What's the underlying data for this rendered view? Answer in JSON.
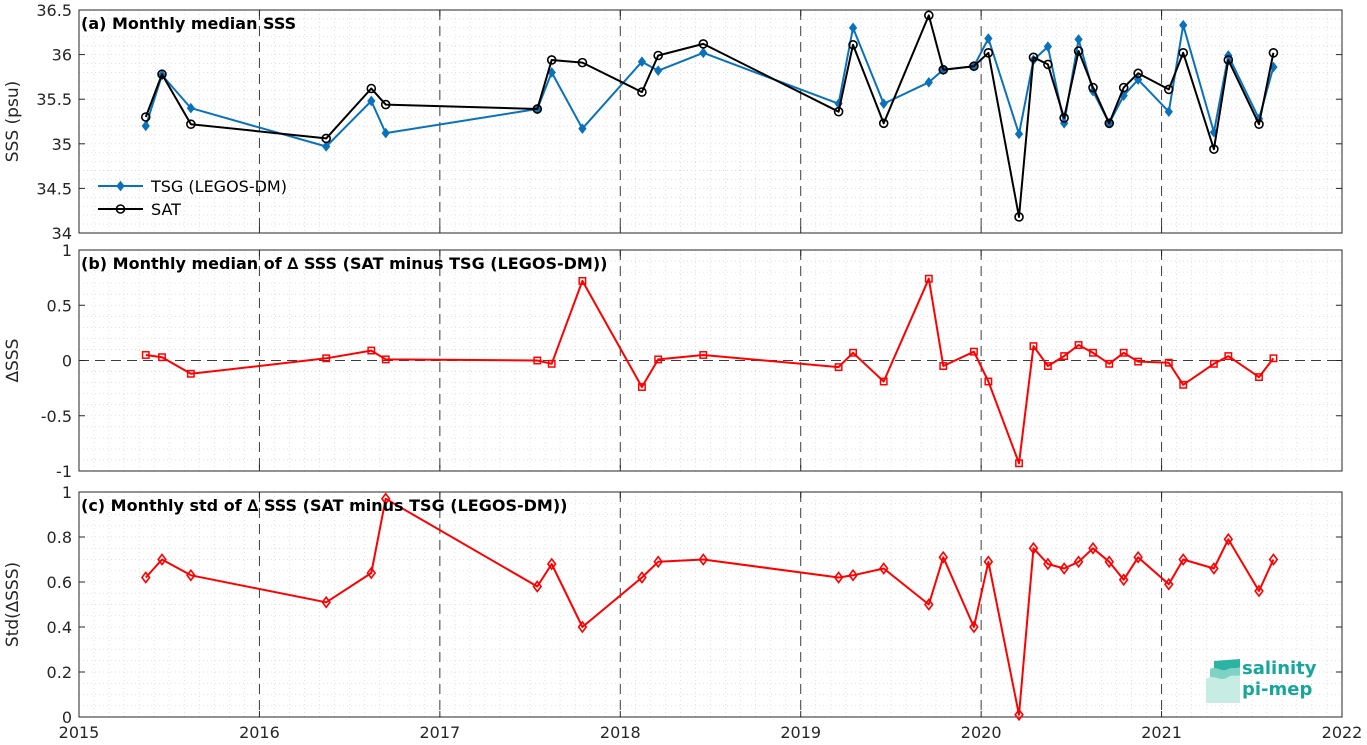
{
  "logo": {
    "line1": "salinity",
    "line2": "pi-mep",
    "color": "#16a79a"
  },
  "colors": {
    "tsg": "#0a72ba",
    "sat": "#000000",
    "delta": "#ff0000"
  },
  "chart_data": [
    {
      "type": "line",
      "title": "(a) Monthly median SSS",
      "xlabel": "",
      "ylabel": "SSS (psu)",
      "xlim": [
        2015,
        2022
      ],
      "ylim": [
        34,
        36.5
      ],
      "xticks": [
        "2015",
        "2016",
        "2017",
        "2018",
        "2019",
        "2020",
        "2021",
        "2022"
      ],
      "yticks": [
        "34",
        "34.5",
        "35",
        "35.5",
        "36",
        "36.5"
      ],
      "legend": "lower-left",
      "series": [
        {
          "name": "TSG (LEGOS-DM)",
          "marker": "filled-diamond",
          "x": [
            2015.37,
            2015.46,
            2015.62,
            2016.37,
            2016.62,
            2016.7,
            2017.54,
            2017.62,
            2017.79,
            2018.12,
            2018.21,
            2018.46,
            2019.21,
            2019.29,
            2019.46,
            2019.71,
            2019.79,
            2019.96,
            2020.04,
            2020.21,
            2020.29,
            2020.37,
            2020.46,
            2020.54,
            2020.62,
            2020.71,
            2020.79,
            2020.87,
            2021.04,
            2021.12,
            2021.29,
            2021.37,
            2021.54,
            2021.62
          ],
          "y": [
            35.2,
            35.77,
            35.4,
            34.97,
            35.48,
            35.12,
            35.39,
            35.8,
            35.17,
            35.92,
            35.82,
            36.02,
            35.45,
            36.3,
            35.45,
            35.69,
            35.83,
            35.87,
            36.18,
            35.11,
            35.94,
            36.09,
            35.23,
            36.17,
            35.59,
            35.23,
            35.54,
            35.72,
            35.36,
            36.33,
            35.13,
            35.99,
            35.28,
            35.86
          ]
        },
        {
          "name": "SAT",
          "marker": "open-circle",
          "x": [
            2015.37,
            2015.46,
            2015.62,
            2016.37,
            2016.62,
            2016.7,
            2017.54,
            2017.62,
            2017.79,
            2018.12,
            2018.21,
            2018.46,
            2019.21,
            2019.29,
            2019.46,
            2019.71,
            2019.79,
            2019.96,
            2020.04,
            2020.21,
            2020.29,
            2020.37,
            2020.46,
            2020.54,
            2020.62,
            2020.71,
            2020.79,
            2020.87,
            2021.04,
            2021.12,
            2021.29,
            2021.37,
            2021.54,
            2021.62
          ],
          "y": [
            35.3,
            35.78,
            35.22,
            35.06,
            35.62,
            35.44,
            35.39,
            35.94,
            35.91,
            35.58,
            35.99,
            36.12,
            35.36,
            36.11,
            35.23,
            36.44,
            35.83,
            35.87,
            36.02,
            34.18,
            35.97,
            35.89,
            35.29,
            36.04,
            35.63,
            35.23,
            35.63,
            35.79,
            35.61,
            36.02,
            34.94,
            35.94,
            35.22,
            36.02
          ]
        }
      ]
    },
    {
      "type": "line",
      "title": "(b) Monthly median of ∆ SSS (SAT minus TSG (LEGOS-DM))",
      "xlabel": "",
      "ylabel": "∆SSS",
      "xlim": [
        2015,
        2022
      ],
      "ylim": [
        -1,
        1
      ],
      "xticks": [
        "2015",
        "2016",
        "2017",
        "2018",
        "2019",
        "2020",
        "2021",
        "2022"
      ],
      "yticks": [
        "-1",
        "-0.5",
        "0",
        "0.5",
        "1"
      ],
      "zero_line": true,
      "series": [
        {
          "marker": "open-square",
          "x": [
            2015.37,
            2015.46,
            2015.62,
            2016.37,
            2016.62,
            2016.7,
            2017.54,
            2017.62,
            2017.79,
            2018.12,
            2018.21,
            2018.46,
            2019.21,
            2019.29,
            2019.46,
            2019.71,
            2019.79,
            2019.96,
            2020.04,
            2020.21,
            2020.29,
            2020.37,
            2020.46,
            2020.54,
            2020.62,
            2020.71,
            2020.79,
            2020.87,
            2021.04,
            2021.12,
            2021.29,
            2021.37,
            2021.54,
            2021.62
          ],
          "y": [
            0.05,
            0.03,
            -0.12,
            0.02,
            0.09,
            0.01,
            0.0,
            -0.03,
            0.72,
            -0.24,
            0.01,
            0.05,
            -0.06,
            0.07,
            -0.19,
            0.74,
            -0.05,
            0.08,
            -0.19,
            -0.93,
            0.13,
            -0.05,
            0.04,
            0.14,
            0.07,
            -0.03,
            0.07,
            -0.01,
            -0.02,
            -0.22,
            -0.03,
            0.04,
            -0.15,
            0.02
          ]
        }
      ]
    },
    {
      "type": "line",
      "title": "(c) Monthly std of ∆ SSS (SAT minus TSG (LEGOS-DM))",
      "xlabel": "",
      "ylabel": "Std(∆SSS)",
      "xlim": [
        2015,
        2022
      ],
      "ylim": [
        0,
        1
      ],
      "xticks": [
        "2015",
        "2016",
        "2017",
        "2018",
        "2019",
        "2020",
        "2021",
        "2022"
      ],
      "yticks": [
        "0",
        "0.2",
        "0.4",
        "0.6",
        "0.8",
        "1"
      ],
      "series": [
        {
          "marker": "open-diamond",
          "x": [
            2015.37,
            2015.46,
            2015.62,
            2016.37,
            2016.62,
            2016.7,
            2017.54,
            2017.62,
            2017.79,
            2018.12,
            2018.21,
            2018.46,
            2019.21,
            2019.29,
            2019.46,
            2019.71,
            2019.79,
            2019.96,
            2020.04,
            2020.21,
            2020.29,
            2020.37,
            2020.46,
            2020.54,
            2020.62,
            2020.71,
            2020.79,
            2020.87,
            2021.04,
            2021.12,
            2021.29,
            2021.37,
            2021.54,
            2021.62
          ],
          "y": [
            0.62,
            0.7,
            0.63,
            0.51,
            0.64,
            0.97,
            0.58,
            0.68,
            0.4,
            0.62,
            0.69,
            0.7,
            0.62,
            0.63,
            0.66,
            0.5,
            0.71,
            0.4,
            0.69,
            0.01,
            0.75,
            0.68,
            0.66,
            0.69,
            0.75,
            0.69,
            0.61,
            0.71,
            0.59,
            0.7,
            0.66,
            0.79,
            0.56,
            0.7
          ]
        }
      ]
    }
  ]
}
